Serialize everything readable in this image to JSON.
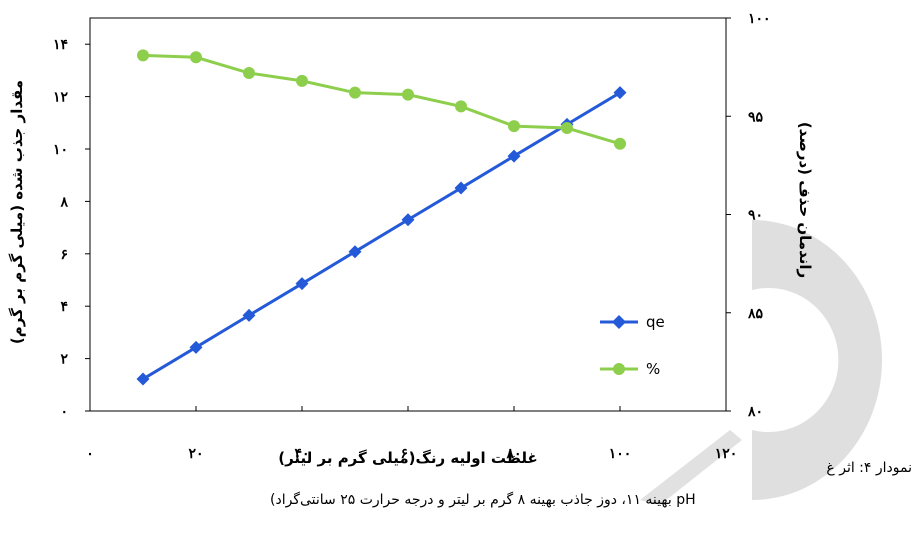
{
  "chart_data": {
    "type": "line",
    "x": [
      10,
      20,
      30,
      40,
      50,
      60,
      70,
      80,
      90,
      100
    ],
    "xlabel": "غلظت اولیه رنگ(میلی گرم بر لیتر)",
    "xlim": [
      0,
      120
    ],
    "xticks": [
      0,
      20,
      40,
      60,
      80,
      100,
      120
    ],
    "xtick_labels": [
      "۰",
      "۲۰",
      "۴۰",
      "۶۰",
      "۸۰",
      "۱۰۰",
      "۱۲۰"
    ],
    "ylabel_left": "مقدار جذب شده (میلی گرم بر گرم)",
    "ylim_left": [
      0,
      15
    ],
    "yticks_left": [
      0,
      2,
      4,
      6,
      8,
      10,
      12,
      14
    ],
    "ytick_labels_left": [
      "۰",
      "۲",
      "۴",
      "۶",
      "۸",
      "۱۰",
      "۱۲",
      "۱۴"
    ],
    "ylabel_right": "راندمان حذف (درصد)",
    "ylim_right": [
      80,
      100
    ],
    "yticks_right": [
      80,
      85,
      90,
      95,
      100
    ],
    "ytick_labels_right": [
      "۸۰",
      "۸۵",
      "۹۰",
      "۹۵",
      "۱۰۰"
    ],
    "grid": false,
    "legend_position": "bottom-right",
    "series": [
      {
        "name": "qe",
        "axis": "left",
        "marker": "diamond",
        "color": "#2459d8",
        "values": [
          1.22,
          2.43,
          3.65,
          4.86,
          6.08,
          7.3,
          8.51,
          9.73,
          10.94,
          12.15
        ]
      },
      {
        "name": "%",
        "axis": "right",
        "marker": "circle",
        "color": "#8dcf4c",
        "values": [
          98.1,
          98.0,
          97.2,
          96.8,
          96.2,
          96.1,
          95.5,
          94.5,
          94.4,
          93.6
        ]
      }
    ]
  },
  "caption": {
    "line1_partial": "نمودار ۴: اثر غ",
    "line2": "pH بهینه ۱۱، دوز جاذب بهینه ۸ گرم بر لیتر و درجه حرارت ۲۵ سانتی‌گراد)"
  },
  "colors": {
    "watermark": "#d9d9d9"
  }
}
